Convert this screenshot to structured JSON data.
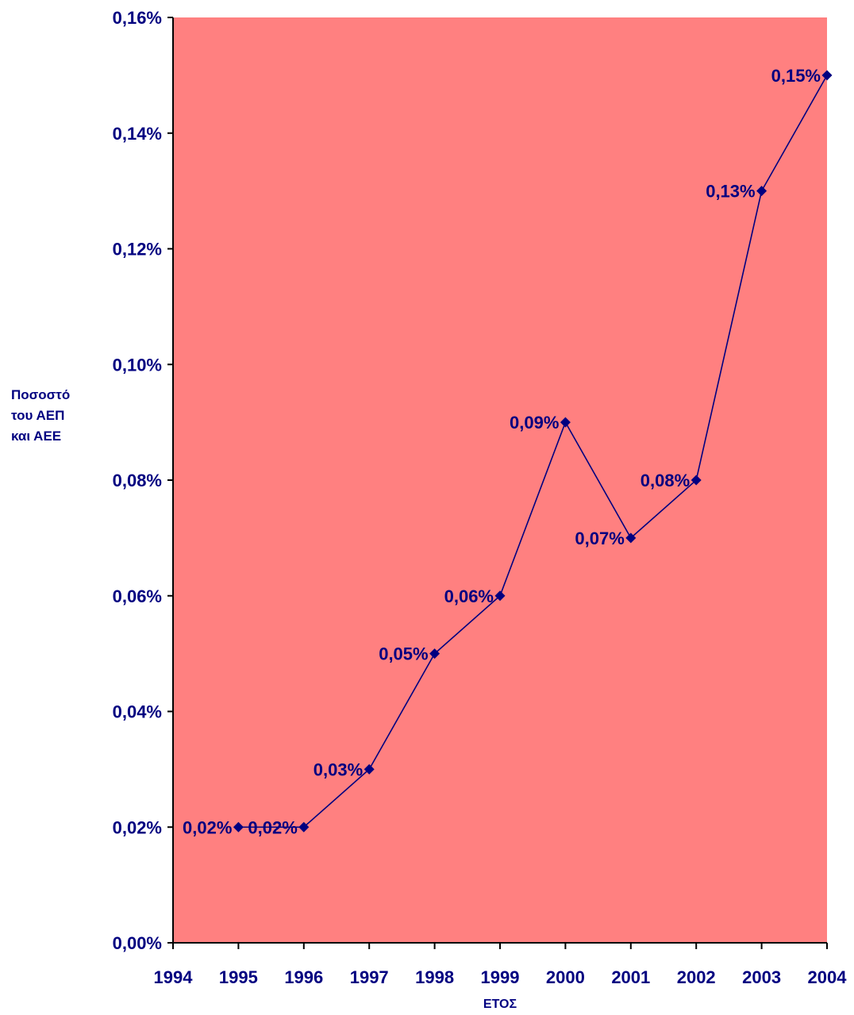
{
  "chart_data": {
    "type": "line",
    "x": [
      "1994",
      "1995",
      "1996",
      "1997",
      "1998",
      "1999",
      "2000",
      "2001",
      "2002",
      "2003",
      "2004"
    ],
    "series": [
      {
        "x": [
          "1995",
          "1996",
          "1997",
          "1998",
          "1999",
          "2000",
          "2001",
          "2002",
          "2003",
          "2004"
        ],
        "values": [
          0.02,
          0.02,
          0.03,
          0.05,
          0.06,
          0.09,
          0.07,
          0.08,
          0.13,
          0.15
        ],
        "labels": [
          "0,02%",
          "0,02%",
          "0,03%",
          "0,05%",
          "0,06%",
          "0,09%",
          "0,07%",
          "0,08%",
          "0,13%",
          "0,15%"
        ],
        "color": "#000080"
      }
    ],
    "ylim": [
      0,
      0.16
    ],
    "yticks": [
      "0,00%",
      "0,02%",
      "0,04%",
      "0,06%",
      "0,08%",
      "0,10%",
      "0,12%",
      "0,14%",
      "0,16%"
    ],
    "ylabel": [
      "Ποσοστό",
      "του ΑΕΠ",
      "και ΑΕΕ"
    ],
    "xlabel": "ΕΤΟΣ",
    "grid": false,
    "legend": "none",
    "plot_background": "#FF8080",
    "text_color": "#000080"
  }
}
